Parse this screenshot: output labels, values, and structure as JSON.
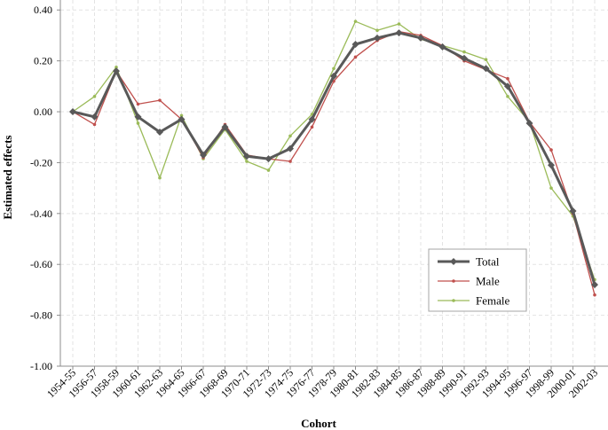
{
  "chart_data": {
    "type": "line",
    "xlabel": "Cohort",
    "ylabel": "Estimated effects",
    "ylim": [
      -1.0,
      0.4
    ],
    "yticks": [
      "0.40",
      "0.20",
      "0.00",
      "-0.20",
      "-0.40",
      "-0.60",
      "-0.80",
      "-1.00"
    ],
    "ytick_values": [
      0.4,
      0.2,
      0.0,
      -0.2,
      -0.4,
      -0.6,
      -0.8,
      -1.0
    ],
    "grid": true,
    "legend_position": "bottom-right",
    "categories": [
      "1954-55",
      "1956-57",
      "1958-59",
      "1960-61",
      "1962-63",
      "1964-65",
      "1966-67",
      "1968-69",
      "1970-71",
      "1972-73",
      "1974-75",
      "1976-77",
      "1978-79",
      "1980-81",
      "1982-83",
      "1984-85",
      "1986-87",
      "1988-89",
      "1990-91",
      "1992-93",
      "1994-95",
      "1996-97",
      "1998-99",
      "2000-01",
      "2002-03"
    ],
    "series": [
      {
        "name": "Total",
        "color": "#595959",
        "width": 3,
        "marker": "diamond",
        "values": [
          0.0,
          -0.02,
          0.16,
          -0.02,
          -0.08,
          -0.03,
          -0.17,
          -0.06,
          -0.175,
          -0.185,
          -0.145,
          -0.03,
          0.14,
          0.265,
          0.29,
          0.31,
          0.29,
          0.255,
          0.21,
          0.17,
          0.1,
          -0.045,
          -0.21,
          -0.39,
          -0.68
        ]
      },
      {
        "name": "Male",
        "color": "#c0504d",
        "width": 1.3,
        "marker": "dot",
        "values": [
          0.0,
          -0.05,
          0.16,
          0.03,
          0.045,
          -0.03,
          -0.18,
          -0.05,
          -0.17,
          -0.185,
          -0.195,
          -0.06,
          0.12,
          0.215,
          0.28,
          0.315,
          0.3,
          0.26,
          0.2,
          0.165,
          0.13,
          -0.04,
          -0.15,
          -0.4,
          -0.72
        ]
      },
      {
        "name": "Female",
        "color": "#9bbb59",
        "width": 1.3,
        "marker": "dot",
        "values": [
          0.0,
          0.06,
          0.175,
          -0.045,
          -0.26,
          -0.015,
          -0.185,
          -0.07,
          -0.195,
          -0.23,
          -0.095,
          -0.01,
          0.17,
          0.355,
          0.32,
          0.345,
          0.285,
          0.26,
          0.235,
          0.205,
          0.06,
          -0.04,
          -0.3,
          -0.41,
          -0.66
        ]
      }
    ]
  }
}
